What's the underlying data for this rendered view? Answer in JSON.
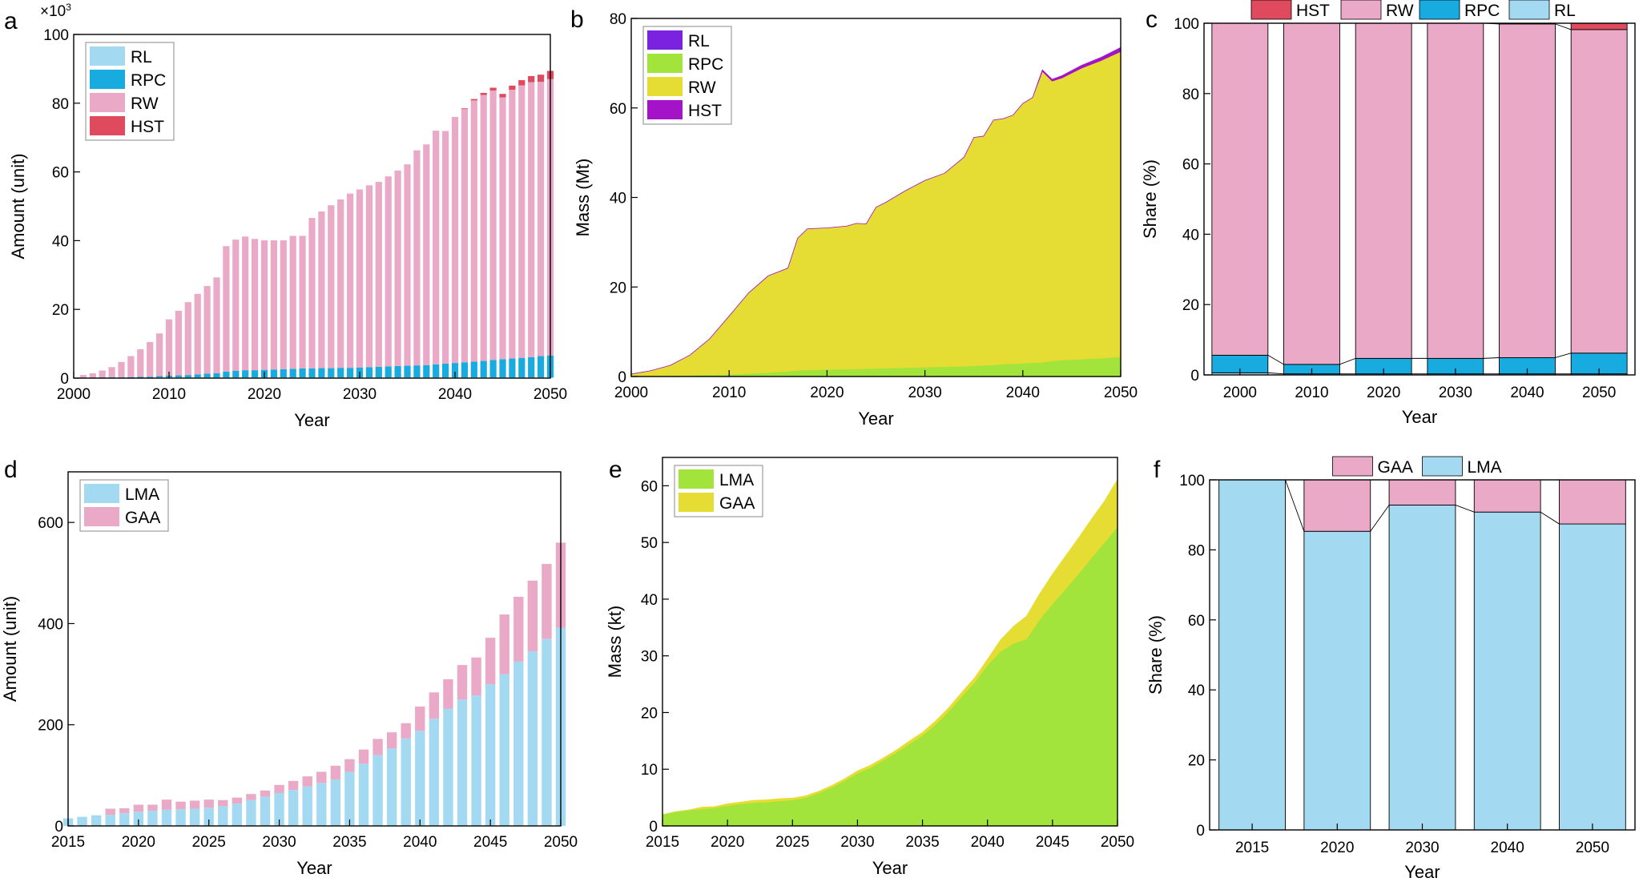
{
  "colors": {
    "RL": "#a3daf2",
    "RPC": "#17abe0",
    "RW": "#eaa9c6",
    "HST": "#e04a5e",
    "LMA": "#a3daf2",
    "GAA": "#eaa9c6",
    "RL_b": "#7b22e0",
    "RPC_b": "#a2e43b",
    "RW_b": "#e6dd34",
    "HST_b": "#a513c9",
    "LMA_e": "#a2e43b",
    "GAA_e": "#e6dd34"
  },
  "chart_data": [
    {
      "id": "a",
      "panel_label": "a",
      "type": "bar",
      "stacked": true,
      "title": "",
      "xlabel": "Year",
      "ylabel": "Amount (unit)",
      "yscale_note_base": "×10",
      "yscale_note_exp": "3",
      "xlim": [
        2000,
        2050
      ],
      "ylim": [
        0,
        100
      ],
      "xticks": [
        "2000",
        "2010",
        "2020",
        "2030",
        "2040",
        "2050"
      ],
      "yticks": [
        "0",
        "20",
        "40",
        "60",
        "80",
        "100"
      ],
      "legend": [
        "RL",
        "RPC",
        "RW",
        "HST"
      ],
      "legend_position": "top-left",
      "x": [
        2001,
        2002,
        2003,
        2004,
        2005,
        2006,
        2007,
        2008,
        2009,
        2010,
        2011,
        2012,
        2013,
        2014,
        2015,
        2016,
        2017,
        2018,
        2019,
        2020,
        2021,
        2022,
        2023,
        2024,
        2025,
        2026,
        2027,
        2028,
        2029,
        2030,
        2031,
        2032,
        2033,
        2034,
        2035,
        2036,
        2037,
        2038,
        2039,
        2040,
        2041,
        2042,
        2043,
        2044,
        2045,
        2046,
        2047,
        2048,
        2049,
        2050
      ],
      "series": [
        {
          "name": "RL",
          "values": [
            0.1,
            0.1,
            0.1,
            0.1,
            0.1,
            0.1,
            0.1,
            0.1,
            0.2,
            0.2,
            0.2,
            0.2,
            0.2,
            0.2,
            0.2,
            0.2,
            0.2,
            0.2,
            0.2,
            0.2,
            0.2,
            0.2,
            0.2,
            0.2,
            0.2,
            0.2,
            0.2,
            0.2,
            0.2,
            0.2,
            0.2,
            0.2,
            0.2,
            0.2,
            0.2,
            0.2,
            0.2,
            0.2,
            0.2,
            0.2,
            0.2,
            0.2,
            0.2,
            0.2,
            0.2,
            0.2,
            0.2,
            0.2,
            0.2,
            0.2
          ]
        },
        {
          "name": "RPC",
          "values": [
            0.0,
            0.0,
            0.1,
            0.1,
            0.1,
            0.2,
            0.3,
            0.3,
            0.4,
            0.5,
            0.6,
            0.7,
            0.9,
            1.1,
            1.2,
            1.7,
            1.9,
            2.1,
            2.1,
            2.2,
            2.3,
            2.4,
            2.5,
            2.6,
            2.6,
            2.7,
            2.7,
            2.8,
            2.8,
            2.9,
            3.0,
            3.1,
            3.2,
            3.3,
            3.4,
            3.5,
            3.6,
            3.8,
            4.0,
            4.2,
            4.4,
            4.6,
            4.8,
            5.1,
            5.3,
            5.5,
            5.7,
            5.9,
            6.2,
            6.4
          ]
        },
        {
          "name": "RW",
          "values": [
            0.8,
            1.3,
            2.0,
            3.0,
            4.5,
            6.1,
            8.0,
            10.1,
            12.4,
            16.4,
            18.8,
            21.2,
            23.4,
            25.5,
            27.9,
            36.5,
            38.2,
            38.9,
            38.2,
            37.7,
            37.6,
            37.5,
            38.7,
            38.6,
            43.8,
            45.6,
            47.4,
            49.0,
            50.7,
            51.8,
            52.9,
            53.8,
            55.3,
            56.9,
            58.6,
            62.6,
            64.2,
            68.0,
            67.7,
            71.6,
            73.7,
            76.0,
            77.4,
            78.4,
            76.2,
            78.2,
            79.3,
            80.0,
            79.8,
            80.4
          ]
        },
        {
          "name": "HST",
          "values": [
            0,
            0,
            0,
            0,
            0,
            0,
            0,
            0,
            0,
            0,
            0,
            0,
            0,
            0,
            0,
            0,
            0,
            0,
            0,
            0,
            0,
            0,
            0,
            0,
            0,
            0,
            0,
            0,
            0,
            0,
            0,
            0,
            0,
            0,
            0,
            0,
            0,
            0,
            0,
            0,
            0.2,
            0.4,
            0.6,
            0.8,
            1.0,
            1.2,
            1.5,
            1.8,
            2.1,
            2.4
          ]
        }
      ]
    },
    {
      "id": "b",
      "panel_label": "b",
      "type": "area",
      "stacked": true,
      "title": "",
      "xlabel": "Year",
      "ylabel": "Mass (Mt)",
      "xlim": [
        2000,
        2050
      ],
      "ylim": [
        0,
        80
      ],
      "xticks": [
        "2000",
        "2010",
        "2020",
        "2030",
        "2040",
        "2050"
      ],
      "yticks": [
        "0",
        "20",
        "40",
        "60",
        "80"
      ],
      "legend": [
        "RL",
        "RPC",
        "RW",
        "HST"
      ],
      "legend_position": "top-left",
      "x": [
        2000,
        2002,
        2004,
        2006,
        2008,
        2010,
        2012,
        2014,
        2016,
        2017,
        2018,
        2020,
        2022,
        2023,
        2024,
        2025,
        2026,
        2028,
        2030,
        2032,
        2034,
        2035,
        2036,
        2037,
        2038,
        2039,
        2040,
        2041,
        2042,
        2043,
        2044,
        2046,
        2048,
        2050
      ],
      "series": [
        {
          "name": "RL",
          "values": [
            0,
            0,
            0,
            0,
            0,
            0,
            0,
            0,
            0,
            0,
            0,
            0,
            0,
            0,
            0,
            0,
            0,
            0,
            0,
            0,
            0,
            0,
            0,
            0,
            0,
            0,
            0,
            0,
            0,
            0,
            0,
            0,
            0,
            0
          ]
        },
        {
          "name": "RPC",
          "values": [
            0.05,
            0.1,
            0.2,
            0.3,
            0.4,
            0.5,
            0.7,
            0.9,
            1.2,
            1.4,
            1.5,
            1.6,
            1.7,
            1.7,
            1.8,
            1.8,
            1.9,
            2.0,
            2.1,
            2.2,
            2.3,
            2.4,
            2.5,
            2.6,
            2.8,
            2.9,
            3.0,
            3.1,
            3.2,
            3.5,
            3.7,
            3.9,
            4.1,
            4.4
          ]
        },
        {
          "name": "RW",
          "values": [
            0.5,
            1.2,
            2.3,
            4.5,
            8.0,
            13.0,
            18.0,
            21.6,
            23.0,
            29.5,
            31.5,
            31.6,
            31.9,
            32.5,
            32.3,
            36.0,
            37.0,
            39.5,
            41.7,
            43.2,
            46.7,
            51.0,
            51.2,
            54.7,
            54.8,
            55.5,
            58.0,
            59.2,
            65.0,
            62.5,
            63.0,
            65.0,
            66.5,
            68.2
          ]
        },
        {
          "name": "HST",
          "values": [
            0,
            0,
            0,
            0,
            0,
            0,
            0,
            0,
            0,
            0,
            0,
            0,
            0,
            0,
            0,
            0,
            0,
            0,
            0,
            0,
            0,
            0,
            0,
            0,
            0,
            0,
            0,
            0,
            0.3,
            0.4,
            0.5,
            0.6,
            0.7,
            0.9
          ]
        }
      ]
    },
    {
      "id": "c",
      "panel_label": "c",
      "type": "bar",
      "stacked": true,
      "title": "",
      "xlabel": "Year",
      "ylabel": "Share (%)",
      "ylim": [
        0,
        100
      ],
      "categories": [
        "2000",
        "2010",
        "2020",
        "2030",
        "2040",
        "2050"
      ],
      "yticks": [
        "0",
        "20",
        "40",
        "60",
        "80",
        "100"
      ],
      "legend": [
        "HST",
        "RW",
        "RPC",
        "RL"
      ],
      "legend_position": "top",
      "series": [
        {
          "name": "RL",
          "values": [
            0.6,
            0.3,
            0.3,
            0.3,
            0.3,
            0.3
          ]
        },
        {
          "name": "RPC",
          "values": [
            5.0,
            2.7,
            4.4,
            4.4,
            4.6,
            5.9
          ]
        },
        {
          "name": "RW",
          "values": [
            94.4,
            97.0,
            95.3,
            95.3,
            94.9,
            92.0
          ]
        },
        {
          "name": "HST",
          "values": [
            0,
            0,
            0,
            0,
            0.2,
            1.8
          ]
        }
      ]
    },
    {
      "id": "d",
      "panel_label": "d",
      "type": "bar",
      "stacked": true,
      "title": "",
      "xlabel": "Year",
      "ylabel": "Amount (unit)",
      "xlim": [
        2015,
        2050
      ],
      "ylim": [
        0,
        700
      ],
      "xticks": [
        "2015",
        "2020",
        "2025",
        "2030",
        "2035",
        "2040",
        "2045",
        "2050"
      ],
      "yticks": [
        "0",
        "200",
        "400",
        "600"
      ],
      "legend": [
        "LMA",
        "GAA"
      ],
      "legend_position": "top-left",
      "x": [
        2015,
        2016,
        2017,
        2018,
        2019,
        2020,
        2021,
        2022,
        2023,
        2024,
        2025,
        2026,
        2027,
        2028,
        2029,
        2030,
        2031,
        2032,
        2033,
        2034,
        2035,
        2036,
        2037,
        2038,
        2039,
        2040,
        2041,
        2042,
        2043,
        2044,
        2045,
        2046,
        2047,
        2048,
        2049,
        2050
      ],
      "series": [
        {
          "name": "LMA",
          "values": [
            15,
            18,
            21,
            22,
            25,
            28,
            30,
            32,
            33,
            34,
            36,
            39,
            44,
            51,
            58,
            65,
            71,
            78,
            85,
            92,
            107,
            123,
            140,
            153,
            173,
            188,
            212,
            232,
            250,
            258,
            280,
            300,
            325,
            345,
            370,
            392
          ]
        },
        {
          "name": "GAA",
          "values": [
            0,
            0,
            0,
            12,
            10,
            14,
            12,
            20,
            15,
            16,
            16,
            12,
            12,
            12,
            12,
            16,
            18,
            20,
            22,
            27,
            25,
            28,
            32,
            32,
            30,
            48,
            52,
            58,
            68,
            75,
            92,
            118,
            128,
            140,
            148,
            168
          ]
        }
      ]
    },
    {
      "id": "e",
      "panel_label": "e",
      "type": "area",
      "stacked": true,
      "title": "",
      "xlabel": "Year",
      "ylabel": "Mass (kt)",
      "xlim": [
        2015,
        2050
      ],
      "ylim": [
        0,
        65
      ],
      "xticks": [
        "2015",
        "2020",
        "2025",
        "2030",
        "2035",
        "2040",
        "2045",
        "2050"
      ],
      "yticks": [
        "0",
        "10",
        "20",
        "30",
        "40",
        "50",
        "60"
      ],
      "legend": [
        "LMA",
        "GAA"
      ],
      "legend_position": "top-left",
      "x": [
        2015,
        2016,
        2017,
        2018,
        2019,
        2020,
        2021,
        2022,
        2023,
        2024,
        2025,
        2026,
        2027,
        2028,
        2029,
        2030,
        2031,
        2032,
        2033,
        2034,
        2035,
        2036,
        2037,
        2038,
        2039,
        2040,
        2041,
        2042,
        2043,
        2044,
        2045,
        2046,
        2047,
        2048,
        2049,
        2050
      ],
      "series": [
        {
          "name": "LMA",
          "values": [
            2.0,
            2.5,
            2.8,
            3.0,
            3.2,
            3.6,
            3.9,
            4.1,
            4.2,
            4.4,
            4.6,
            5.0,
            5.8,
            6.8,
            8.0,
            9.3,
            10.3,
            11.6,
            13.0,
            14.5,
            16.0,
            17.9,
            20.2,
            22.8,
            25.3,
            28.4,
            30.8,
            32.2,
            33.0,
            36.4,
            39.2,
            41.8,
            44.5,
            47.3,
            50.0,
            52.8
          ]
        },
        {
          "name": "GAA",
          "values": [
            0,
            0,
            0,
            0.3,
            0.2,
            0.3,
            0.3,
            0.4,
            0.4,
            0.4,
            0.3,
            0.3,
            0.3,
            0.3,
            0.3,
            0.4,
            0.4,
            0.4,
            0.4,
            0.5,
            0.5,
            0.6,
            0.6,
            0.7,
            0.8,
            1.0,
            2.0,
            3.0,
            4.0,
            4.5,
            5.2,
            5.8,
            6.3,
            6.8,
            7.3,
            8.3
          ]
        }
      ]
    },
    {
      "id": "f",
      "panel_label": "f",
      "type": "bar",
      "stacked": true,
      "title": "",
      "xlabel": "Year",
      "ylabel": "Share (%)",
      "ylim": [
        0,
        100
      ],
      "categories": [
        "2015",
        "2020",
        "2030",
        "2040",
        "2050"
      ],
      "yticks": [
        "0",
        "20",
        "40",
        "60",
        "80",
        "100"
      ],
      "legend": [
        "GAA",
        "LMA"
      ],
      "legend_position": "top",
      "series": [
        {
          "name": "LMA",
          "values": [
            100,
            85.3,
            92.8,
            90.8,
            87.4
          ]
        },
        {
          "name": "GAA",
          "values": [
            0,
            14.7,
            7.2,
            9.2,
            12.6
          ]
        }
      ]
    }
  ]
}
